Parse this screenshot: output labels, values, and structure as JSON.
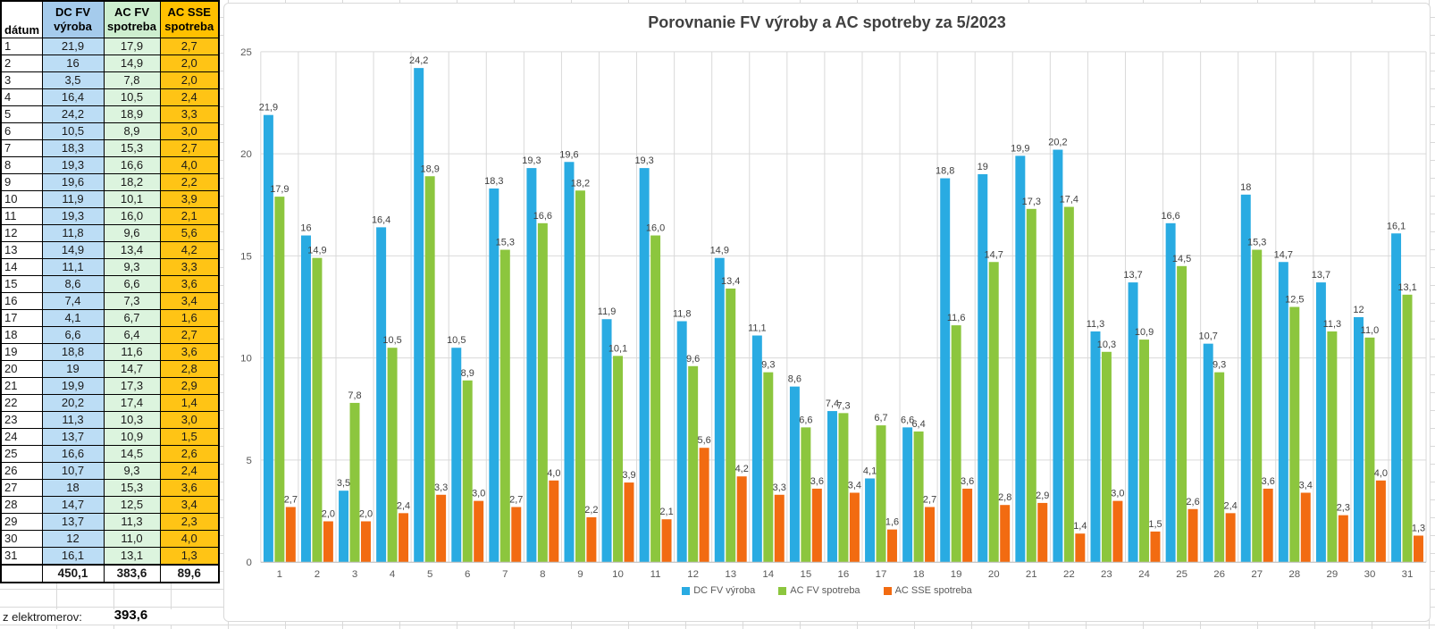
{
  "colors": {
    "series_blue": "#29ABE2",
    "series_green": "#8CC63E",
    "series_orange": "#F26B11",
    "table_header_blue": "#A5CBEC",
    "table_cell_blue": "#BCDDF5",
    "table_header_green": "#CDEECF",
    "table_cell_green": "#DCF4DE",
    "table_header_gold": "#FFC000",
    "table_cell_gold": "#FFC415",
    "grid_line": "#D9D9D9",
    "axis_text": "#595959",
    "label_text": "#404040"
  },
  "table": {
    "headers": [
      "dátum",
      "DC FV výroba",
      "AC FV spotreba",
      "AC SSE spotreba"
    ],
    "rows": [
      [
        "1",
        "21,9",
        "17,9",
        "2,7"
      ],
      [
        "2",
        "16",
        "14,9",
        "2,0"
      ],
      [
        "3",
        "3,5",
        "7,8",
        "2,0"
      ],
      [
        "4",
        "16,4",
        "10,5",
        "2,4"
      ],
      [
        "5",
        "24,2",
        "18,9",
        "3,3"
      ],
      [
        "6",
        "10,5",
        "8,9",
        "3,0"
      ],
      [
        "7",
        "18,3",
        "15,3",
        "2,7"
      ],
      [
        "8",
        "19,3",
        "16,6",
        "4,0"
      ],
      [
        "9",
        "19,6",
        "18,2",
        "2,2"
      ],
      [
        "10",
        "11,9",
        "10,1",
        "3,9"
      ],
      [
        "11",
        "19,3",
        "16,0",
        "2,1"
      ],
      [
        "12",
        "11,8",
        "9,6",
        "5,6"
      ],
      [
        "13",
        "14,9",
        "13,4",
        "4,2"
      ],
      [
        "14",
        "11,1",
        "9,3",
        "3,3"
      ],
      [
        "15",
        "8,6",
        "6,6",
        "3,6"
      ],
      [
        "16",
        "7,4",
        "7,3",
        "3,4"
      ],
      [
        "17",
        "4,1",
        "6,7",
        "1,6"
      ],
      [
        "18",
        "6,6",
        "6,4",
        "2,7"
      ],
      [
        "19",
        "18,8",
        "11,6",
        "3,6"
      ],
      [
        "20",
        "19",
        "14,7",
        "2,8"
      ],
      [
        "21",
        "19,9",
        "17,3",
        "2,9"
      ],
      [
        "22",
        "20,2",
        "17,4",
        "1,4"
      ],
      [
        "23",
        "11,3",
        "10,3",
        "3,0"
      ],
      [
        "24",
        "13,7",
        "10,9",
        "1,5"
      ],
      [
        "25",
        "16,6",
        "14,5",
        "2,6"
      ],
      [
        "26",
        "10,7",
        "9,3",
        "2,4"
      ],
      [
        "27",
        "18",
        "15,3",
        "3,6"
      ],
      [
        "28",
        "14,7",
        "12,5",
        "3,4"
      ],
      [
        "29",
        "13,7",
        "11,3",
        "2,3"
      ],
      [
        "30",
        "12",
        "11,0",
        "4,0"
      ],
      [
        "31",
        "16,1",
        "13,1",
        "1,3"
      ]
    ],
    "totals": [
      "",
      "450,1",
      "383,6",
      "89,6"
    ],
    "footer_label": "z elektromerov:",
    "footer_value": "393,6"
  },
  "chart_data": {
    "type": "bar",
    "title": "Porovnanie FV výroby a AC spotreby za 5/2023",
    "categories": [
      "1",
      "2",
      "3",
      "4",
      "5",
      "6",
      "7",
      "8",
      "9",
      "10",
      "11",
      "12",
      "13",
      "14",
      "15",
      "16",
      "17",
      "18",
      "19",
      "20",
      "21",
      "22",
      "23",
      "24",
      "25",
      "26",
      "27",
      "28",
      "29",
      "30",
      "31"
    ],
    "series": [
      {
        "name": "DC FV výroba",
        "color": "#29ABE2",
        "values": [
          21.9,
          16,
          3.5,
          16.4,
          24.2,
          10.5,
          18.3,
          19.3,
          19.6,
          11.9,
          19.3,
          11.8,
          14.9,
          11.1,
          8.6,
          7.4,
          4.1,
          6.6,
          18.8,
          19,
          19.9,
          20.2,
          11.3,
          13.7,
          16.6,
          10.7,
          18,
          14.7,
          13.7,
          12,
          16.1
        ],
        "labels": [
          "21,9",
          "16",
          "3,5",
          "16,4",
          "24,2",
          "10,5",
          "18,3",
          "19,3",
          "19,6",
          "11,9",
          "19,3",
          "11,8",
          "14,9",
          "11,1",
          "8,6",
          "7,4",
          "4,1",
          "6,6",
          "18,8",
          "19",
          "19,9",
          "20,2",
          "11,3",
          "13,7",
          "16,6",
          "10,7",
          "18",
          "14,7",
          "13,7",
          "12",
          "16,1"
        ]
      },
      {
        "name": "AC FV spotreba",
        "color": "#8CC63E",
        "values": [
          17.9,
          14.9,
          7.8,
          10.5,
          18.9,
          8.9,
          15.3,
          16.6,
          18.2,
          10.1,
          16.0,
          9.6,
          13.4,
          9.3,
          6.6,
          7.3,
          6.7,
          6.4,
          11.6,
          14.7,
          17.3,
          17.4,
          10.3,
          10.9,
          14.5,
          9.3,
          15.3,
          12.5,
          11.3,
          11.0,
          13.1
        ],
        "labels": [
          "17,9",
          "14,9",
          "7,8",
          "10,5",
          "18,9",
          "8,9",
          "15,3",
          "16,6",
          "18,2",
          "10,1",
          "16,0",
          "9,6",
          "13,4",
          "9,3",
          "6,6",
          "7,3",
          "6,7",
          "6,4",
          "11,6",
          "14,7",
          "17,3",
          "17,4",
          "10,3",
          "10,9",
          "14,5",
          "9,3",
          "15,3",
          "12,5",
          "11,3",
          "11,0",
          "13,1"
        ]
      },
      {
        "name": "AC SSE spotreba",
        "color": "#F26B11",
        "values": [
          2.7,
          2.0,
          2.0,
          2.4,
          3.3,
          3.0,
          2.7,
          4.0,
          2.2,
          3.9,
          2.1,
          5.6,
          4.2,
          3.3,
          3.6,
          3.4,
          1.6,
          2.7,
          3.6,
          2.8,
          2.9,
          1.4,
          3.0,
          1.5,
          2.6,
          2.4,
          3.6,
          3.4,
          2.3,
          4.0,
          1.3
        ],
        "labels": [
          "2,7",
          "2,0",
          "2,0",
          "2,4",
          "3,3",
          "3,0",
          "2,7",
          "4,0",
          "2,2",
          "3,9",
          "2,1",
          "5,6",
          "4,2",
          "3,3",
          "3,6",
          "3,4",
          "1,6",
          "2,7",
          "3,6",
          "2,8",
          "2,9",
          "1,4",
          "3,0",
          "1,5",
          "2,6",
          "2,4",
          "3,6",
          "3,4",
          "2,3",
          "4,0",
          "1,3"
        ]
      }
    ],
    "xlabel": "",
    "ylabel": "",
    "ylim": [
      0,
      25
    ],
    "yticks": [
      0,
      5,
      10,
      15,
      20,
      25
    ],
    "grid": true,
    "legend_position": "bottom"
  }
}
